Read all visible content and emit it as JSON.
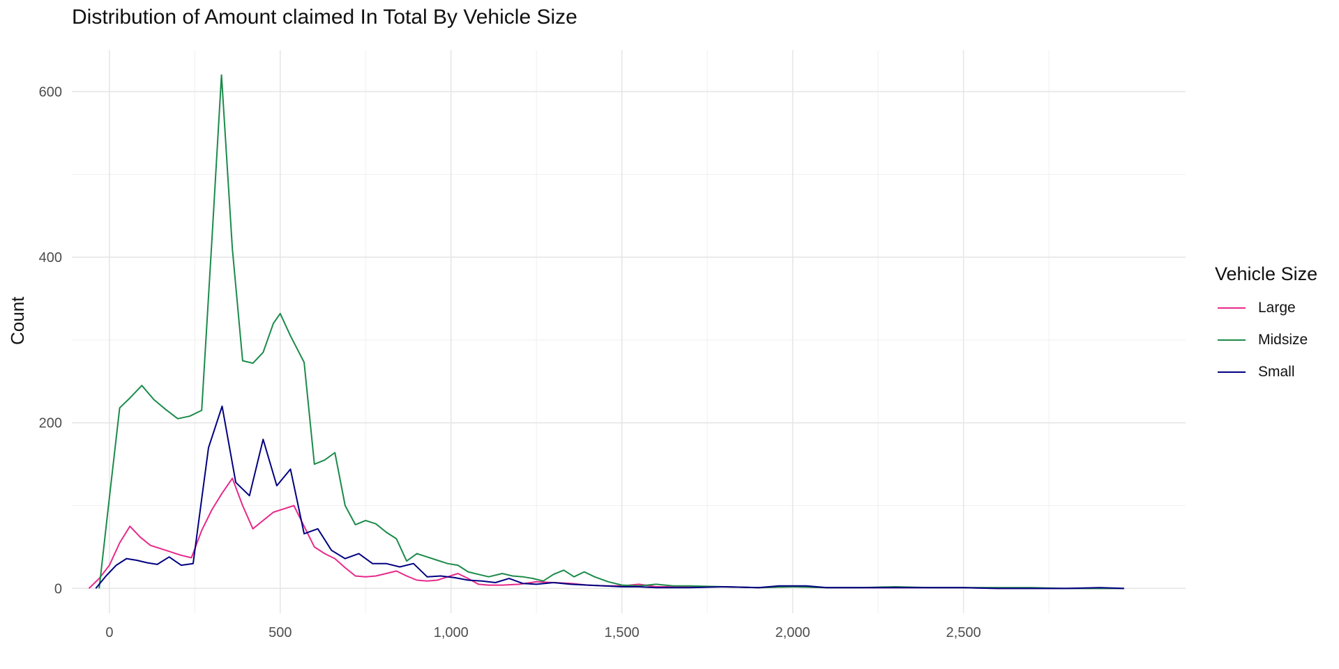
{
  "chart_data": {
    "type": "line",
    "title": "Distribution of Amount claimed In Total By Vehicle Size",
    "xlabel": "",
    "ylabel": "Count",
    "xlim": [
      -110,
      3150
    ],
    "ylim": [
      -30,
      650
    ],
    "x_ticks": [
      0,
      500,
      1000,
      1500,
      2000,
      2500
    ],
    "x_tick_labels": [
      "0",
      "500",
      "1,000",
      "1,500",
      "2,000",
      "2,500"
    ],
    "y_ticks": [
      0,
      200,
      400,
      600
    ],
    "y_tick_labels": [
      "0",
      "200",
      "400",
      "600"
    ],
    "grid": true,
    "legend": {
      "title": "Vehicle Size",
      "position": "right"
    },
    "series": [
      {
        "name": "Large",
        "color": "#e7298a",
        "points": [
          [
            -60,
            0
          ],
          [
            -30,
            12
          ],
          [
            0,
            28
          ],
          [
            30,
            55
          ],
          [
            60,
            75
          ],
          [
            90,
            62
          ],
          [
            120,
            52
          ],
          [
            150,
            48
          ],
          [
            180,
            44
          ],
          [
            210,
            40
          ],
          [
            240,
            37
          ],
          [
            270,
            70
          ],
          [
            300,
            95
          ],
          [
            330,
            115
          ],
          [
            360,
            133
          ],
          [
            390,
            100
          ],
          [
            420,
            72
          ],
          [
            450,
            82
          ],
          [
            480,
            92
          ],
          [
            510,
            96
          ],
          [
            540,
            100
          ],
          [
            570,
            75
          ],
          [
            600,
            50
          ],
          [
            630,
            42
          ],
          [
            660,
            36
          ],
          [
            690,
            25
          ],
          [
            720,
            15
          ],
          [
            750,
            14
          ],
          [
            780,
            15
          ],
          [
            810,
            18
          ],
          [
            840,
            21
          ],
          [
            870,
            15
          ],
          [
            900,
            10
          ],
          [
            930,
            9
          ],
          [
            960,
            10
          ],
          [
            990,
            14
          ],
          [
            1020,
            18
          ],
          [
            1050,
            12
          ],
          [
            1080,
            5
          ],
          [
            1110,
            4
          ],
          [
            1150,
            4
          ],
          [
            1200,
            5
          ],
          [
            1250,
            8
          ],
          [
            1300,
            7
          ],
          [
            1350,
            6
          ],
          [
            1400,
            4
          ],
          [
            1450,
            3
          ],
          [
            1500,
            3
          ],
          [
            1550,
            5
          ],
          [
            1600,
            2
          ],
          [
            1700,
            2
          ],
          [
            1800,
            2
          ],
          [
            1900,
            1
          ],
          [
            2000,
            2
          ],
          [
            2100,
            1
          ],
          [
            2200,
            1
          ],
          [
            2300,
            1
          ],
          [
            2400,
            1
          ],
          [
            2500,
            1
          ],
          [
            2600,
            0
          ],
          [
            2700,
            0
          ],
          [
            2800,
            0
          ],
          [
            2900,
            0
          ],
          [
            2970,
            0
          ]
        ]
      },
      {
        "name": "Midsize",
        "color": "#1b8a4a",
        "points": [
          [
            -30,
            0
          ],
          [
            0,
            110
          ],
          [
            30,
            218
          ],
          [
            60,
            230
          ],
          [
            95,
            245
          ],
          [
            130,
            228
          ],
          [
            165,
            216
          ],
          [
            200,
            205
          ],
          [
            235,
            208
          ],
          [
            270,
            215
          ],
          [
            300,
            420
          ],
          [
            328,
            620
          ],
          [
            360,
            410
          ],
          [
            390,
            275
          ],
          [
            420,
            272
          ],
          [
            450,
            285
          ],
          [
            480,
            320
          ],
          [
            500,
            332
          ],
          [
            530,
            305
          ],
          [
            570,
            273
          ],
          [
            600,
            150
          ],
          [
            630,
            155
          ],
          [
            660,
            164
          ],
          [
            690,
            100
          ],
          [
            720,
            77
          ],
          [
            750,
            82
          ],
          [
            780,
            78
          ],
          [
            810,
            68
          ],
          [
            840,
            60
          ],
          [
            870,
            33
          ],
          [
            900,
            42
          ],
          [
            930,
            38
          ],
          [
            960,
            34
          ],
          [
            990,
            30
          ],
          [
            1020,
            28
          ],
          [
            1050,
            20
          ],
          [
            1080,
            17
          ],
          [
            1110,
            14
          ],
          [
            1150,
            18
          ],
          [
            1180,
            15
          ],
          [
            1210,
            14
          ],
          [
            1240,
            12
          ],
          [
            1270,
            9
          ],
          [
            1300,
            17
          ],
          [
            1330,
            22
          ],
          [
            1360,
            14
          ],
          [
            1390,
            20
          ],
          [
            1420,
            14
          ],
          [
            1460,
            8
          ],
          [
            1500,
            4
          ],
          [
            1550,
            3
          ],
          [
            1600,
            5
          ],
          [
            1650,
            3
          ],
          [
            1700,
            3
          ],
          [
            1800,
            2
          ],
          [
            1900,
            1
          ],
          [
            2000,
            2
          ],
          [
            2100,
            1
          ],
          [
            2200,
            1
          ],
          [
            2300,
            2
          ],
          [
            2400,
            1
          ],
          [
            2500,
            1
          ],
          [
            2600,
            1
          ],
          [
            2700,
            1
          ],
          [
            2800,
            0
          ],
          [
            2900,
            0
          ],
          [
            2970,
            0
          ]
        ]
      },
      {
        "name": "Small",
        "color": "#000080",
        "points": [
          [
            -40,
            0
          ],
          [
            -10,
            15
          ],
          [
            20,
            28
          ],
          [
            50,
            36
          ],
          [
            80,
            34
          ],
          [
            110,
            31
          ],
          [
            140,
            29
          ],
          [
            175,
            38
          ],
          [
            210,
            28
          ],
          [
            245,
            30
          ],
          [
            290,
            170
          ],
          [
            330,
            220
          ],
          [
            370,
            128
          ],
          [
            410,
            112
          ],
          [
            450,
            180
          ],
          [
            490,
            124
          ],
          [
            530,
            144
          ],
          [
            570,
            66
          ],
          [
            610,
            72
          ],
          [
            650,
            46
          ],
          [
            690,
            36
          ],
          [
            730,
            42
          ],
          [
            770,
            30
          ],
          [
            810,
            30
          ],
          [
            850,
            26
          ],
          [
            890,
            30
          ],
          [
            930,
            14
          ],
          [
            970,
            15
          ],
          [
            1010,
            13
          ],
          [
            1050,
            10
          ],
          [
            1090,
            9
          ],
          [
            1130,
            7
          ],
          [
            1170,
            12
          ],
          [
            1210,
            6
          ],
          [
            1250,
            5
          ],
          [
            1300,
            7
          ],
          [
            1350,
            5
          ],
          [
            1400,
            4
          ],
          [
            1450,
            3
          ],
          [
            1500,
            2
          ],
          [
            1550,
            2
          ],
          [
            1600,
            1
          ],
          [
            1700,
            1
          ],
          [
            1800,
            2
          ],
          [
            1900,
            1
          ],
          [
            1960,
            3
          ],
          [
            2040,
            3
          ],
          [
            2100,
            1
          ],
          [
            2200,
            1
          ],
          [
            2300,
            1
          ],
          [
            2400,
            1
          ],
          [
            2500,
            1
          ],
          [
            2600,
            0
          ],
          [
            2700,
            0
          ],
          [
            2800,
            0
          ],
          [
            2900,
            1
          ],
          [
            2970,
            0
          ]
        ]
      }
    ]
  }
}
